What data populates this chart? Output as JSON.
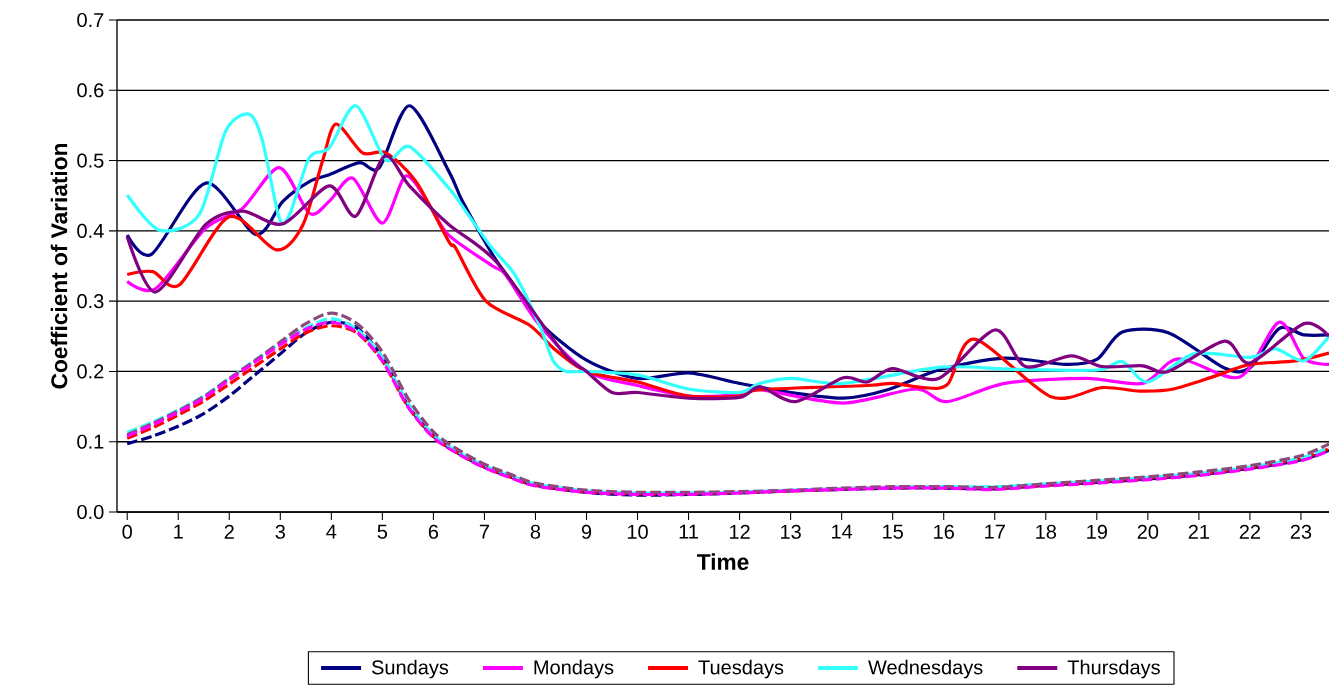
{
  "chart_data": {
    "type": "line",
    "xlabel": "Time",
    "ylabel": "Coefficient of Variation",
    "xlim": [
      -0.2,
      23.55
    ],
    "ylim": [
      0,
      0.7
    ],
    "xticks": [
      0,
      1,
      2,
      3,
      4,
      5,
      6,
      7,
      8,
      9,
      10,
      11,
      12,
      13,
      14,
      15,
      16,
      17,
      18,
      19,
      20,
      21,
      22,
      23
    ],
    "yticks": [
      {
        "value": 0,
        "label": "0.0"
      },
      0.1,
      0.2,
      0.3,
      0.4,
      0.5,
      0.6,
      0.7
    ],
    "grid": "y",
    "legend": "bottom",
    "line_style": "solid",
    "series": [
      {
        "name": "Sundays",
        "color": "#000080",
        "x": [
          0,
          0.48,
          1.54,
          2.52,
          3.05,
          3.57,
          3.96,
          4.55,
          4.94,
          5.53,
          6.3,
          6.57,
          7.16,
          7.49,
          8.08,
          9,
          10,
          11,
          12,
          13,
          14.03,
          14.9,
          15.95,
          17.2,
          18.4,
          19,
          19.5,
          20.4,
          21.5,
          22,
          22.57,
          23.06,
          23.55
        ],
        "values": [
          0.394,
          0.367,
          0.468,
          0.395,
          0.442,
          0.47,
          0.48,
          0.497,
          0.49,
          0.578,
          0.485,
          0.442,
          0.366,
          0.332,
          0.27,
          0.216,
          0.19,
          0.198,
          0.183,
          0.17,
          0.162,
          0.174,
          0.203,
          0.219,
          0.21,
          0.217,
          0.256,
          0.255,
          0.205,
          0.205,
          0.261,
          0.252,
          0.252
        ]
      },
      {
        "name": "Mondays",
        "color": "#ff00ff",
        "x": [
          0,
          0.56,
          1.54,
          2.26,
          2.98,
          3.57,
          3.96,
          4.42,
          5,
          5.46,
          5.92,
          6.3,
          7.16,
          7.42,
          8.08,
          9,
          10,
          11,
          12,
          12.4,
          14.03,
          15.45,
          16.06,
          17.2,
          18.8,
          19.9,
          20.6,
          21.8,
          22.57,
          23.06,
          23.55
        ],
        "values": [
          0.328,
          0.318,
          0.404,
          0.432,
          0.49,
          0.425,
          0.442,
          0.475,
          0.411,
          0.478,
          0.437,
          0.394,
          0.35,
          0.337,
          0.266,
          0.2,
          0.18,
          0.165,
          0.167,
          0.174,
          0.155,
          0.175,
          0.157,
          0.183,
          0.19,
          0.183,
          0.218,
          0.192,
          0.27,
          0.218,
          0.21
        ]
      },
      {
        "name": "Tuesdays",
        "color": "#ff0000",
        "x": [
          0,
          0.5,
          1.02,
          2,
          2.92,
          3.44,
          3.83,
          4.09,
          4.61,
          5.07,
          5.66,
          6.3,
          6.44,
          7.03,
          7.88,
          8.4,
          9,
          10,
          11,
          12,
          12.4,
          14.5,
          15,
          15.6,
          16.08,
          16.6,
          18.1,
          19.1,
          19.85,
          20.5,
          21.3,
          22,
          22.9,
          23.55
        ],
        "values": [
          0.338,
          0.342,
          0.323,
          0.42,
          0.373,
          0.408,
          0.5,
          0.552,
          0.511,
          0.511,
          0.47,
          0.385,
          0.375,
          0.3,
          0.266,
          0.23,
          0.2,
          0.185,
          0.165,
          0.165,
          0.174,
          0.18,
          0.183,
          0.177,
          0.182,
          0.246,
          0.164,
          0.177,
          0.172,
          0.175,
          0.193,
          0.21,
          0.215,
          0.226
        ]
      },
      {
        "name": "Wednesdays",
        "color": "#33ffff",
        "x": [
          0,
          0.63,
          1.41,
          1.93,
          2.39,
          2.65,
          2.98,
          3.18,
          3.57,
          3.96,
          4.48,
          5.07,
          5.53,
          6.3,
          6.5,
          7.1,
          7.6,
          8.08,
          8.34,
          8.6,
          9,
          10,
          11,
          12,
          12.4,
          13.04,
          14.03,
          15.95,
          17.37,
          19,
          19.5,
          20,
          20.9,
          22,
          22.5,
          23.06,
          23.55
        ],
        "values": [
          0.451,
          0.401,
          0.423,
          0.542,
          0.566,
          0.528,
          0.418,
          0.423,
          0.504,
          0.518,
          0.578,
          0.501,
          0.52,
          0.461,
          0.442,
          0.38,
          0.337,
          0.266,
          0.216,
          0.2,
          0.2,
          0.195,
          0.175,
          0.17,
          0.183,
          0.19,
          0.183,
          0.206,
          0.203,
          0.202,
          0.214,
          0.185,
          0.225,
          0.22,
          0.232,
          0.215,
          0.25
        ]
      },
      {
        "name": "Thursdays",
        "color": "#800080",
        "x": [
          0,
          0.56,
          1.54,
          2.26,
          3.05,
          3.96,
          4.48,
          5.04,
          5.53,
          6.3,
          7.23,
          8.53,
          9,
          9.5,
          10,
          11,
          12,
          12.4,
          13.1,
          14.03,
          14.5,
          15,
          15.9,
          17,
          17.6,
          18.5,
          19.1,
          19.9,
          20.4,
          21.5,
          22,
          23.06,
          23.55
        ],
        "values": [
          0.392,
          0.313,
          0.409,
          0.428,
          0.41,
          0.464,
          0.421,
          0.506,
          0.464,
          0.409,
          0.356,
          0.228,
          0.2,
          0.17,
          0.17,
          0.162,
          0.163,
          0.178,
          0.157,
          0.191,
          0.185,
          0.204,
          0.19,
          0.259,
          0.207,
          0.222,
          0.207,
          0.208,
          0.2,
          0.243,
          0.212,
          0.268,
          0.25
        ]
      },
      {
        "color": "#000080",
        "line_style": "dashed",
        "x": [
          0,
          0.5,
          1,
          1.5,
          2,
          2.5,
          3,
          3.5,
          4,
          4.5,
          5,
          5.5,
          6,
          6.5,
          7,
          7.5,
          8,
          9,
          10,
          11,
          12,
          13,
          14,
          15,
          16,
          17,
          18,
          19,
          20,
          21,
          22,
          23,
          23.55
        ],
        "values": [
          0.097,
          0.108,
          0.122,
          0.14,
          0.165,
          0.195,
          0.225,
          0.255,
          0.27,
          0.262,
          0.22,
          0.152,
          0.108,
          0.083,
          0.064,
          0.05,
          0.038,
          0.028,
          0.024,
          0.025,
          0.027,
          0.03,
          0.032,
          0.034,
          0.034,
          0.033,
          0.038,
          0.042,
          0.047,
          0.053,
          0.062,
          0.074,
          0.088
        ]
      },
      {
        "color": "#ff0000",
        "line_style": "dashed",
        "x": [
          0,
          0.5,
          1,
          1.5,
          2,
          2.5,
          3,
          3.5,
          4,
          4.5,
          5,
          5.5,
          6,
          6.5,
          7,
          7.5,
          8,
          9,
          10,
          11,
          12,
          13,
          14,
          15,
          16,
          17,
          18,
          19,
          20,
          21,
          22,
          23,
          23.55
        ],
        "values": [
          0.105,
          0.12,
          0.138,
          0.158,
          0.182,
          0.207,
          0.232,
          0.255,
          0.265,
          0.255,
          0.215,
          0.15,
          0.107,
          0.083,
          0.064,
          0.05,
          0.038,
          0.029,
          0.026,
          0.026,
          0.028,
          0.03,
          0.033,
          0.035,
          0.035,
          0.034,
          0.038,
          0.043,
          0.048,
          0.054,
          0.063,
          0.076,
          0.09
        ]
      },
      {
        "color": "#33ffff",
        "line_style": "dashed",
        "x": [
          0,
          0.5,
          1,
          1.5,
          2,
          2.5,
          3,
          3.5,
          4,
          4.5,
          5,
          5.5,
          6,
          6.5,
          7,
          7.5,
          8,
          9,
          10,
          11,
          12,
          13,
          14,
          15,
          16,
          17,
          18,
          19,
          20,
          21,
          22,
          23,
          23.55
        ],
        "values": [
          0.113,
          0.128,
          0.145,
          0.165,
          0.19,
          0.216,
          0.24,
          0.262,
          0.275,
          0.26,
          0.22,
          0.155,
          0.11,
          0.085,
          0.066,
          0.052,
          0.04,
          0.03,
          0.027,
          0.027,
          0.028,
          0.031,
          0.033,
          0.035,
          0.036,
          0.036,
          0.04,
          0.044,
          0.049,
          0.055,
          0.064,
          0.077,
          0.092
        ]
      },
      {
        "color": "#8b4a7a",
        "line_style": "dashed",
        "x": [
          0,
          0.5,
          1,
          1.5,
          2,
          2.5,
          3,
          3.5,
          4,
          4.5,
          5,
          5.5,
          6,
          6.5,
          7,
          7.5,
          8,
          9,
          10,
          11,
          12,
          13,
          14,
          15,
          16,
          17,
          18,
          19,
          20,
          21,
          22,
          23,
          23.55
        ],
        "values": [
          0.11,
          0.126,
          0.144,
          0.164,
          0.19,
          0.215,
          0.242,
          0.268,
          0.283,
          0.268,
          0.228,
          0.162,
          0.114,
          0.088,
          0.068,
          0.054,
          0.041,
          0.031,
          0.028,
          0.028,
          0.029,
          0.031,
          0.034,
          0.036,
          0.036,
          0.035,
          0.04,
          0.045,
          0.05,
          0.057,
          0.066,
          0.08,
          0.097
        ]
      },
      {
        "color": "#ff00ff",
        "line_style": "dashed",
        "x": [
          0,
          0.5,
          1,
          1.5,
          2,
          2.5,
          3,
          3.5,
          4,
          4.5,
          5,
          5.5,
          6,
          6.5,
          7,
          7.5,
          8,
          9,
          10,
          11,
          12,
          13,
          14,
          15,
          16,
          17,
          18,
          19,
          20,
          21,
          22,
          23,
          23.55
        ],
        "values": [
          0.108,
          0.124,
          0.142,
          0.162,
          0.188,
          0.213,
          0.238,
          0.26,
          0.27,
          0.256,
          0.215,
          0.15,
          0.106,
          0.082,
          0.063,
          0.049,
          0.037,
          0.028,
          0.025,
          0.025,
          0.027,
          0.03,
          0.032,
          0.034,
          0.034,
          0.032,
          0.037,
          0.041,
          0.046,
          0.052,
          0.061,
          0.073,
          0.087
        ]
      }
    ]
  }
}
